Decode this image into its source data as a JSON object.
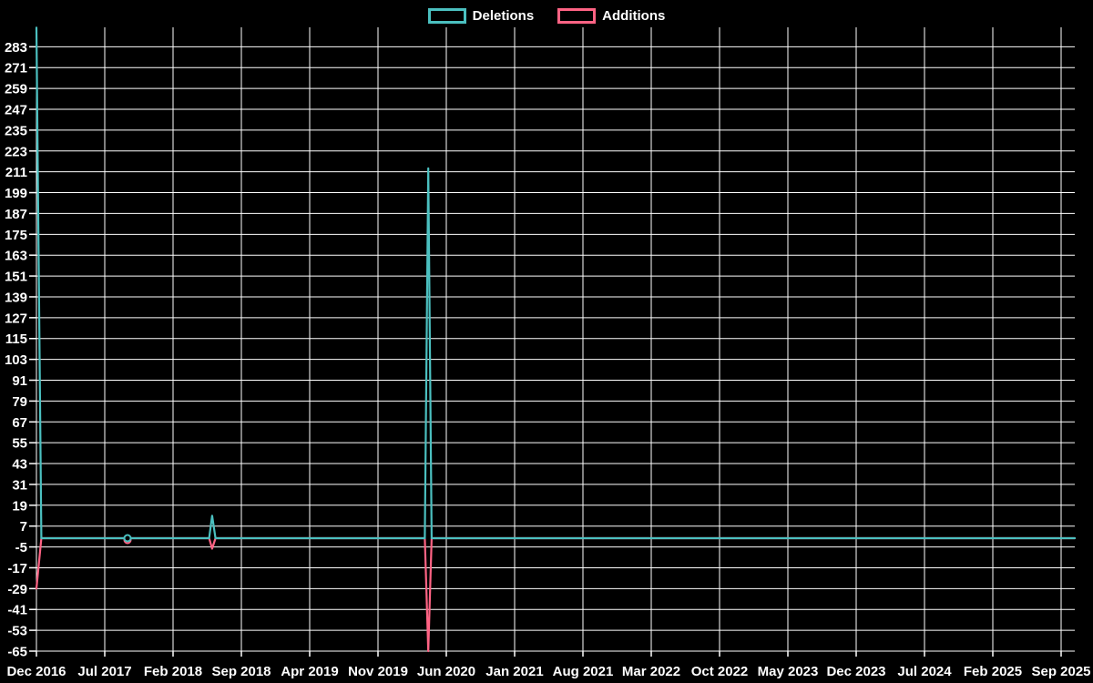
{
  "page": {
    "background_color": "#000000",
    "text_color": "#ffffff",
    "grid_color": "#ffffff"
  },
  "legend": {
    "items": [
      {
        "label": "Additions",
        "color": "#4bc0c0"
      },
      {
        "label": "Deletions",
        "color": "#ff6384"
      }
    ]
  },
  "chart_data": {
    "type": "line",
    "title": "",
    "xlabel": "",
    "ylabel": "",
    "x_unit": "months since Dec 2016",
    "grid": true,
    "legend_position": "top",
    "xlim_months": [
      0,
      106.4
    ],
    "ylim": [
      -65,
      294.2
    ],
    "y_ticks": [
      283,
      271,
      259,
      247,
      235,
      223,
      211,
      199,
      187,
      175,
      163,
      151,
      139,
      127,
      115,
      103,
      91,
      79,
      67,
      55,
      43,
      31,
      19,
      7,
      -5,
      -17,
      -29,
      -41,
      -53,
      -65
    ],
    "x_tick_months": [
      0,
      7,
      14,
      21,
      28,
      35,
      42,
      49,
      56,
      63,
      70,
      77,
      84,
      91,
      98,
      105
    ],
    "x_tick_labels": [
      "Dec 2016",
      "Jul 2017",
      "Feb 2018",
      "Sep 2018",
      "Apr 2019",
      "Nov 2019",
      "Jun 2020",
      "Jan 2021",
      "Aug 2021",
      "Mar 2022",
      "Oct 2022",
      "May 2023",
      "Dec 2023",
      "Jul 2024",
      "Feb 2025",
      "Sep 2025"
    ],
    "series": [
      {
        "name": "Deletions",
        "color": "#ff6384",
        "points": [
          [
            0,
            -29
          ],
          [
            0.5,
            0
          ],
          [
            9.33,
            0
          ],
          [
            17.7,
            0
          ],
          [
            18.0,
            -6
          ],
          [
            18.35,
            0
          ],
          [
            39.8,
            0
          ],
          [
            40.15,
            -65
          ],
          [
            40.5,
            0
          ],
          [
            106.4,
            0
          ]
        ],
        "markers": [
          [
            9.33,
            -1
          ]
        ]
      },
      {
        "name": "Additions",
        "color": "#4bc0c0",
        "points": [
          [
            0,
            294
          ],
          [
            0.5,
            0
          ],
          [
            9.33,
            0
          ],
          [
            17.7,
            0
          ],
          [
            18.0,
            13
          ],
          [
            18.35,
            0
          ],
          [
            39.8,
            0
          ],
          [
            40.15,
            213
          ],
          [
            40.5,
            0
          ],
          [
            106.4,
            0
          ]
        ],
        "markers": [
          [
            9.33,
            0
          ]
        ]
      }
    ]
  }
}
